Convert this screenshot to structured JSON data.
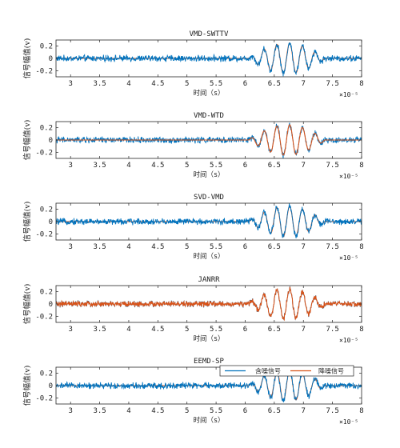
{
  "figure": {
    "colors": {
      "noisy": "#0072BD",
      "denoised": "#D95319",
      "axis": "#262626"
    }
  },
  "chart_data": [
    {
      "type": "line",
      "title": "VMD-SWTTV",
      "xlabel": "时间（s）",
      "ylabel": "信号幅值(v)",
      "x_exponent": "×10⁻⁵",
      "xlim": [
        2.75,
        8.0
      ],
      "ylim": [
        -0.3,
        0.3
      ],
      "xticks": [
        3,
        3.5,
        4,
        4.5,
        5,
        5.5,
        6,
        6.5,
        7,
        7.5,
        8
      ],
      "xtick_labels": [
        "3",
        "3.5",
        "4",
        "4.5",
        "5",
        "5.5",
        "6",
        "6.5",
        "7",
        "7.5",
        "8"
      ],
      "yticks": [
        -0.2,
        0,
        0.2
      ],
      "ytick_labels": [
        "-0.2",
        "0",
        "0.2"
      ],
      "burst": {
        "start": 6.05,
        "end": 8.0,
        "frequency": 4.55,
        "peak_amplitude": 0.25,
        "noise_level": 0.04
      },
      "series": [
        {
          "role": "noisy",
          "front": true
        },
        {
          "role": "denoised",
          "front": false
        }
      ]
    },
    {
      "type": "line",
      "title": "VMD-WTD",
      "xlabel": "时间（s）",
      "ylabel": "信号幅值(v)",
      "x_exponent": "×10⁻⁵",
      "xlim": [
        2.75,
        8.0
      ],
      "ylim": [
        -0.3,
        0.3
      ],
      "xticks": [
        3,
        3.5,
        4,
        4.5,
        5,
        5.5,
        6,
        6.5,
        7,
        7.5,
        8
      ],
      "xtick_labels": [
        "3",
        "3.5",
        "4",
        "4.5",
        "5",
        "5.5",
        "6",
        "6.5",
        "7",
        "7.5",
        "8"
      ],
      "yticks": [
        -0.2,
        0,
        0.2
      ],
      "ytick_labels": [
        "-0.2",
        "0",
        "0.2"
      ],
      "burst": {
        "start": 6.05,
        "end": 8.0,
        "frequency": 4.55,
        "peak_amplitude": 0.25,
        "noise_level": 0.04
      },
      "series": [
        {
          "role": "noisy",
          "front": false
        },
        {
          "role": "denoised",
          "front": true
        }
      ]
    },
    {
      "type": "line",
      "title": "SVD-VMD",
      "xlabel": "时间（s）",
      "ylabel": "信号幅值(v)",
      "x_exponent": "×10⁻⁵",
      "xlim": [
        2.75,
        8.0
      ],
      "ylim": [
        -0.3,
        0.3
      ],
      "xticks": [
        3,
        3.5,
        4,
        4.5,
        5,
        5.5,
        6,
        6.5,
        7,
        7.5,
        8
      ],
      "xtick_labels": [
        "3",
        "3.5",
        "4",
        "4.5",
        "5",
        "5.5",
        "6",
        "6.5",
        "7",
        "7.5",
        "8"
      ],
      "yticks": [
        -0.2,
        0,
        0.2
      ],
      "ytick_labels": [
        "-0.2",
        "0",
        "0.2"
      ],
      "burst": {
        "start": 6.05,
        "end": 8.0,
        "frequency": 4.55,
        "peak_amplitude": 0.25,
        "noise_level": 0.04
      },
      "series": [
        {
          "role": "noisy",
          "front": true
        },
        {
          "role": "denoised",
          "front": false
        }
      ]
    },
    {
      "type": "line",
      "title": "JANRR",
      "xlabel": "时间（s）",
      "ylabel": "信号幅值(v)",
      "x_exponent": "×10⁻⁵",
      "xlim": [
        2.75,
        8.0
      ],
      "ylim": [
        -0.3,
        0.3
      ],
      "xticks": [
        3,
        3.5,
        4,
        4.5,
        5,
        5.5,
        6,
        6.5,
        7,
        7.5,
        8
      ],
      "xtick_labels": [
        "3",
        "3.5",
        "4",
        "4.5",
        "5",
        "5.5",
        "6",
        "6.5",
        "7",
        "7.5",
        "8"
      ],
      "yticks": [
        -0.2,
        0,
        0.2
      ],
      "ytick_labels": [
        "-0.2",
        "0",
        "0.2"
      ],
      "burst": {
        "start": 6.05,
        "end": 8.0,
        "frequency": 4.55,
        "peak_amplitude": 0.25,
        "noise_level": 0.04
      },
      "series": [
        {
          "role": "noisy",
          "front": false
        },
        {
          "role": "denoised",
          "front": true
        }
      ]
    },
    {
      "type": "line",
      "title": "EEMD-SP",
      "xlabel": "时间（s）",
      "ylabel": "信号幅值(v)",
      "x_exponent": "×10⁻⁵",
      "xlim": [
        2.75,
        8.0
      ],
      "ylim": [
        -0.3,
        0.3
      ],
      "xticks": [
        3,
        3.5,
        4,
        4.5,
        5,
        5.5,
        6,
        6.5,
        7,
        7.5,
        8
      ],
      "xtick_labels": [
        "3",
        "3.5",
        "4",
        "4.5",
        "5",
        "5.5",
        "6",
        "6.5",
        "7",
        "7.5",
        "8"
      ],
      "yticks": [
        -0.2,
        0,
        0.2
      ],
      "ytick_labels": [
        "-0.2",
        "0",
        "0.2"
      ],
      "burst": {
        "start": 6.05,
        "end": 8.0,
        "frequency": 4.55,
        "peak_amplitude": 0.25,
        "noise_level": 0.04
      },
      "series": [
        {
          "role": "noisy",
          "front": true
        },
        {
          "role": "denoised",
          "front": false
        }
      ],
      "legend": {
        "position": "top-right",
        "entries": [
          "含噪信号",
          "降噪信号"
        ]
      }
    }
  ]
}
